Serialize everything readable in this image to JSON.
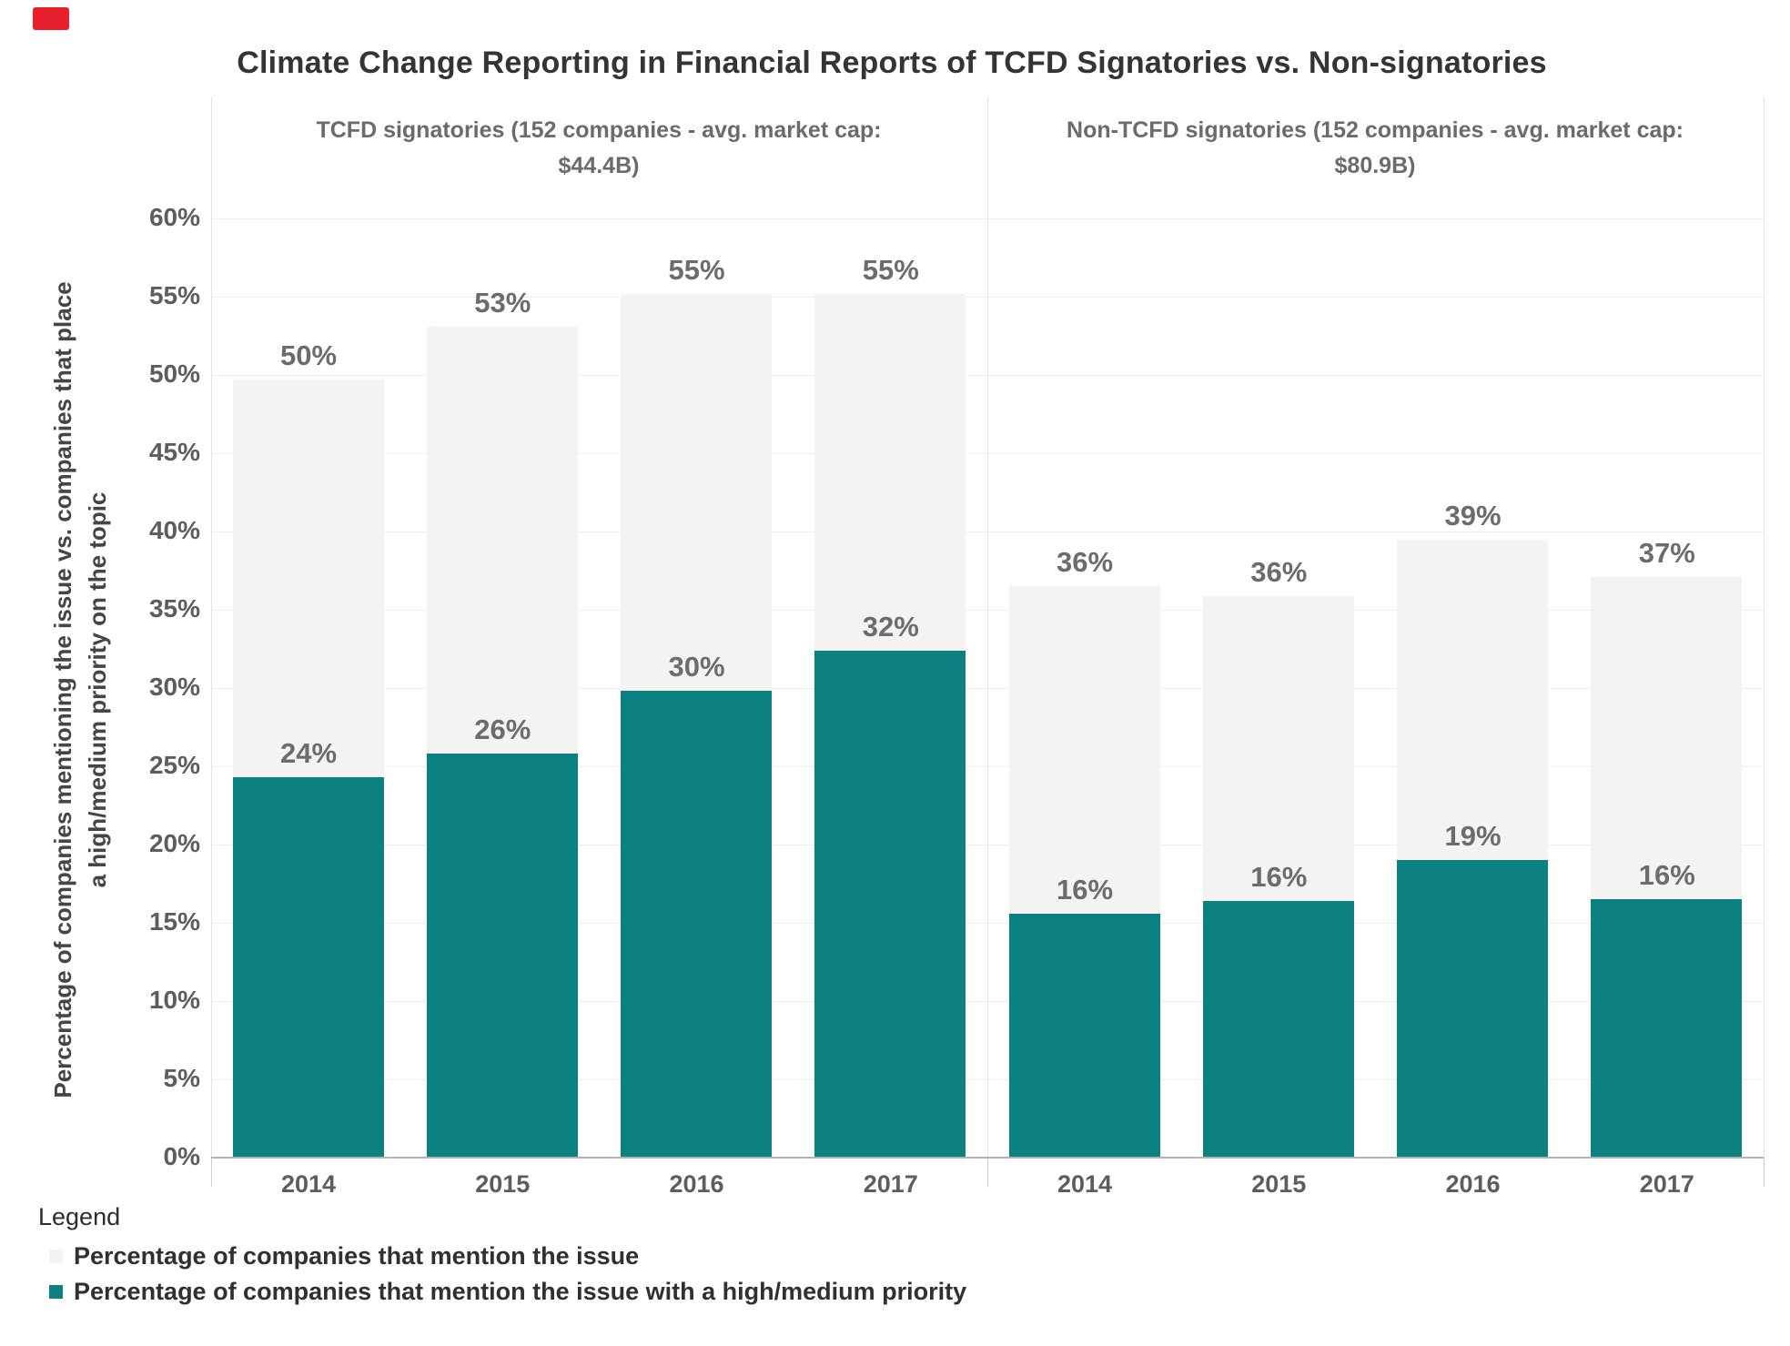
{
  "recording_badge": {
    "color": "#e8202e"
  },
  "title": "Climate Change Reporting in Financial Reports of TCFD Signatories vs. Non-signatories",
  "y_axis": {
    "title_line1": "Percentage of companies mentioning the issue vs. companies that place",
    "title_line2": "a high/medium priority on the topic",
    "tick_labels": [
      "0%",
      "5%",
      "10%",
      "15%",
      "20%",
      "25%",
      "30%",
      "35%",
      "40%",
      "45%",
      "50%",
      "55%",
      "60%"
    ]
  },
  "legend": {
    "title": "Legend",
    "items": [
      {
        "label": "Percentage of companies that mention the issue",
        "color": "#f4f3f2"
      },
      {
        "label": "Percentage of companies that mention the issue with a high/medium priority",
        "color": "#0d8181"
      }
    ]
  },
  "chart_data": {
    "type": "bar",
    "subtype": "overlapping-columns-two-panels",
    "title": "Climate Change Reporting in Financial Reports of TCFD Signatories vs. Non-signatories",
    "ylabel": "Percentage of companies mentioning the issue vs. companies that place a high/medium priority on the topic",
    "ylim": [
      0,
      60
    ],
    "ytick_step": 5,
    "grid": true,
    "legend_position": "bottom-left",
    "colors": {
      "mention": "#f4f3f2",
      "priority": "#0d8181"
    },
    "panels": [
      {
        "header": "TCFD signatories (152 companies - avg. market cap: $44.4B)",
        "categories": [
          "2014",
          "2015",
          "2016",
          "2017"
        ],
        "series": [
          {
            "name": "Percentage of companies that mention the issue",
            "values": [
              50,
              53,
              55,
              55
            ],
            "render": [
              49.7,
              53.1,
              55.2,
              55.2
            ]
          },
          {
            "name": "Percentage of companies that mention the issue with a high/medium priority",
            "values": [
              24,
              26,
              30,
              32
            ],
            "render": [
              24.3,
              25.8,
              29.8,
              32.4
            ]
          }
        ]
      },
      {
        "header": "Non-TCFD signatories (152 companies - avg. market cap: $80.9B)",
        "categories": [
          "2014",
          "2015",
          "2016",
          "2017"
        ],
        "series": [
          {
            "name": "Percentage of companies that mention the issue",
            "values": [
              36,
              36,
              39,
              37
            ],
            "render": [
              36.5,
              35.9,
              39.5,
              37.1
            ]
          },
          {
            "name": "Percentage of companies that mention the issue with a high/medium priority",
            "values": [
              16,
              16,
              19,
              16
            ],
            "render": [
              15.6,
              16.4,
              19.0,
              16.5
            ]
          }
        ]
      }
    ]
  }
}
